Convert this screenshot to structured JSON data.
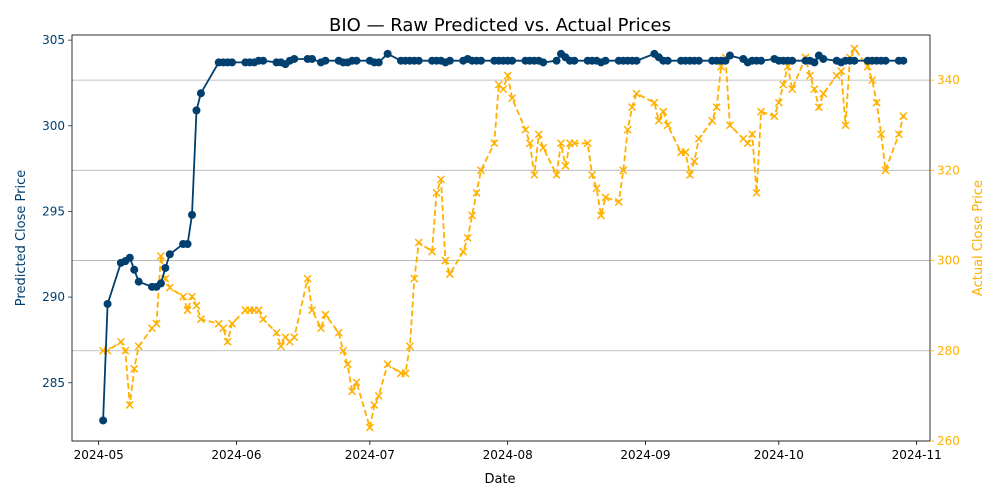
{
  "chart_data": {
    "type": "line",
    "title": "BIO — Raw Predicted vs. Actual Prices",
    "xlabel": "Date",
    "ylabel_left": "Predicted Close Price",
    "ylabel_right": "Actual Close Price",
    "xlim": [
      "2024-04-25",
      "2024-11-04"
    ],
    "ylim_left": [
      281.6,
      305.3
    ],
    "ylim_right": [
      260,
      350
    ],
    "x_ticks": [
      "2024-05",
      "2024-06",
      "2024-07",
      "2024-08",
      "2024-09",
      "2024-10",
      "2024-11"
    ],
    "y_ticks_left": [
      285,
      290,
      295,
      300,
      305
    ],
    "y_ticks_right": [
      260,
      280,
      300,
      320,
      340
    ],
    "grid": "horizontal lines at right-axis ticks",
    "colors": {
      "predicted": "#003f6e",
      "actual": "#ffb000"
    },
    "series": [
      {
        "axis": "left",
        "style": "solid line with circle markers",
        "points": [
          [
            "2024-05-02",
            282.8
          ],
          [
            "2024-05-03",
            289.6
          ],
          [
            "2024-05-06",
            292.0
          ],
          [
            "2024-05-07",
            292.1
          ],
          [
            "2024-05-08",
            292.3
          ],
          [
            "2024-05-09",
            291.6
          ],
          [
            "2024-05-10",
            290.9
          ],
          [
            "2024-05-13",
            290.6
          ],
          [
            "2024-05-14",
            290.6
          ],
          [
            "2024-05-15",
            290.8
          ],
          [
            "2024-05-16",
            291.7
          ],
          [
            "2024-05-17",
            292.5
          ],
          [
            "2024-05-20",
            293.1
          ],
          [
            "2024-05-21",
            293.1
          ],
          [
            "2024-05-22",
            294.8
          ],
          [
            "2024-05-23",
            300.9
          ],
          [
            "2024-05-24",
            301.9
          ],
          [
            "2024-05-28",
            303.7
          ],
          [
            "2024-05-29",
            303.7
          ],
          [
            "2024-05-30",
            303.7
          ],
          [
            "2024-05-31",
            303.7
          ],
          [
            "2024-06-03",
            303.7
          ],
          [
            "2024-06-04",
            303.7
          ],
          [
            "2024-06-05",
            303.7
          ],
          [
            "2024-06-06",
            303.8
          ],
          [
            "2024-06-07",
            303.8
          ],
          [
            "2024-06-10",
            303.7
          ],
          [
            "2024-06-11",
            303.7
          ],
          [
            "2024-06-12",
            303.6
          ],
          [
            "2024-06-13",
            303.8
          ],
          [
            "2024-06-14",
            303.9
          ],
          [
            "2024-06-17",
            303.9
          ],
          [
            "2024-06-18",
            303.9
          ],
          [
            "2024-06-20",
            303.7
          ],
          [
            "2024-06-21",
            303.8
          ],
          [
            "2024-06-24",
            303.8
          ],
          [
            "2024-06-25",
            303.7
          ],
          [
            "2024-06-26",
            303.7
          ],
          [
            "2024-06-27",
            303.8
          ],
          [
            "2024-06-28",
            303.8
          ],
          [
            "2024-07-01",
            303.8
          ],
          [
            "2024-07-02",
            303.7
          ],
          [
            "2024-07-03",
            303.7
          ],
          [
            "2024-07-05",
            304.2
          ],
          [
            "2024-07-08",
            303.8
          ],
          [
            "2024-07-09",
            303.8
          ],
          [
            "2024-07-10",
            303.8
          ],
          [
            "2024-07-11",
            303.8
          ],
          [
            "2024-07-12",
            303.8
          ],
          [
            "2024-07-15",
            303.8
          ],
          [
            "2024-07-16",
            303.8
          ],
          [
            "2024-07-17",
            303.8
          ],
          [
            "2024-07-18",
            303.7
          ],
          [
            "2024-07-19",
            303.8
          ],
          [
            "2024-07-22",
            303.8
          ],
          [
            "2024-07-23",
            303.9
          ],
          [
            "2024-07-24",
            303.8
          ],
          [
            "2024-07-25",
            303.8
          ],
          [
            "2024-07-26",
            303.8
          ],
          [
            "2024-07-29",
            303.8
          ],
          [
            "2024-07-30",
            303.8
          ],
          [
            "2024-07-31",
            303.8
          ],
          [
            "2024-08-01",
            303.8
          ],
          [
            "2024-08-02",
            303.8
          ],
          [
            "2024-08-05",
            303.8
          ],
          [
            "2024-08-06",
            303.8
          ],
          [
            "2024-08-07",
            303.8
          ],
          [
            "2024-08-08",
            303.8
          ],
          [
            "2024-08-09",
            303.7
          ],
          [
            "2024-08-12",
            303.8
          ],
          [
            "2024-08-13",
            304.2
          ],
          [
            "2024-08-14",
            304.0
          ],
          [
            "2024-08-15",
            303.8
          ],
          [
            "2024-08-16",
            303.8
          ],
          [
            "2024-08-19",
            303.8
          ],
          [
            "2024-08-20",
            303.8
          ],
          [
            "2024-08-21",
            303.8
          ],
          [
            "2024-08-22",
            303.7
          ],
          [
            "2024-08-23",
            303.8
          ],
          [
            "2024-08-26",
            303.8
          ],
          [
            "2024-08-27",
            303.8
          ],
          [
            "2024-08-28",
            303.8
          ],
          [
            "2024-08-29",
            303.8
          ],
          [
            "2024-08-30",
            303.8
          ],
          [
            "2024-09-03",
            304.2
          ],
          [
            "2024-09-04",
            304.0
          ],
          [
            "2024-09-05",
            303.8
          ],
          [
            "2024-09-06",
            303.8
          ],
          [
            "2024-09-09",
            303.8
          ],
          [
            "2024-09-10",
            303.8
          ],
          [
            "2024-09-11",
            303.8
          ],
          [
            "2024-09-12",
            303.8
          ],
          [
            "2024-09-13",
            303.8
          ],
          [
            "2024-09-16",
            303.8
          ],
          [
            "2024-09-17",
            303.8
          ],
          [
            "2024-09-18",
            303.8
          ],
          [
            "2024-09-19",
            303.8
          ],
          [
            "2024-09-20",
            304.1
          ],
          [
            "2024-09-23",
            303.9
          ],
          [
            "2024-09-24",
            303.7
          ],
          [
            "2024-09-25",
            303.8
          ],
          [
            "2024-09-26",
            303.8
          ],
          [
            "2024-09-27",
            303.8
          ],
          [
            "2024-09-30",
            303.9
          ],
          [
            "2024-10-01",
            303.8
          ],
          [
            "2024-10-02",
            303.8
          ],
          [
            "2024-10-03",
            303.8
          ],
          [
            "2024-10-04",
            303.8
          ],
          [
            "2024-10-07",
            303.8
          ],
          [
            "2024-10-08",
            303.8
          ],
          [
            "2024-10-09",
            303.7
          ],
          [
            "2024-10-10",
            304.1
          ],
          [
            "2024-10-11",
            303.9
          ],
          [
            "2024-10-14",
            303.8
          ],
          [
            "2024-10-15",
            303.7
          ],
          [
            "2024-10-16",
            303.8
          ],
          [
            "2024-10-17",
            303.8
          ],
          [
            "2024-10-18",
            303.8
          ],
          [
            "2024-10-21",
            303.8
          ],
          [
            "2024-10-22",
            303.8
          ],
          [
            "2024-10-23",
            303.8
          ],
          [
            "2024-10-24",
            303.8
          ],
          [
            "2024-10-25",
            303.8
          ],
          [
            "2024-10-28",
            303.8
          ],
          [
            "2024-10-29",
            303.8
          ]
        ]
      },
      {
        "axis": "right",
        "style": "dashed line with x markers",
        "points": [
          [
            "2024-05-02",
            280.0
          ],
          [
            "2024-05-03",
            280.0
          ],
          [
            "2024-05-06",
            282.0
          ],
          [
            "2024-05-07",
            280.0
          ],
          [
            "2024-05-08",
            268.0
          ],
          [
            "2024-05-09",
            276.0
          ],
          [
            "2024-05-10",
            281.0
          ],
          [
            "2024-05-13",
            285.0
          ],
          [
            "2024-05-14",
            286.0
          ],
          [
            "2024-05-15",
            301.0
          ],
          [
            "2024-05-16",
            296.0
          ],
          [
            "2024-05-17",
            294.0
          ],
          [
            "2024-05-20",
            292.0
          ],
          [
            "2024-05-21",
            289.0
          ],
          [
            "2024-05-22",
            292.0
          ],
          [
            "2024-05-23",
            290.0
          ],
          [
            "2024-05-24",
            287.0
          ],
          [
            "2024-05-28",
            286.0
          ],
          [
            "2024-05-29",
            285.0
          ],
          [
            "2024-05-30",
            282.0
          ],
          [
            "2024-05-31",
            286.0
          ],
          [
            "2024-06-03",
            289.0
          ],
          [
            "2024-06-04",
            289.0
          ],
          [
            "2024-06-05",
            289.0
          ],
          [
            "2024-06-06",
            289.0
          ],
          [
            "2024-06-07",
            287.0
          ],
          [
            "2024-06-10",
            284.0
          ],
          [
            "2024-06-11",
            281.0
          ],
          [
            "2024-06-12",
            283.0
          ],
          [
            "2024-06-13",
            282.0
          ],
          [
            "2024-06-14",
            283.0
          ],
          [
            "2024-06-17",
            296.0
          ],
          [
            "2024-06-18",
            289.0
          ],
          [
            "2024-06-20",
            285.0
          ],
          [
            "2024-06-21",
            288.0
          ],
          [
            "2024-06-24",
            284.0
          ],
          [
            "2024-06-25",
            280.0
          ],
          [
            "2024-06-26",
            277.0
          ],
          [
            "2024-06-27",
            271.0
          ],
          [
            "2024-06-28",
            273.0
          ],
          [
            "2024-07-01",
            263.0
          ],
          [
            "2024-07-02",
            268.0
          ],
          [
            "2024-07-03",
            270.0
          ],
          [
            "2024-07-05",
            277.0
          ],
          [
            "2024-07-08",
            275.0
          ],
          [
            "2024-07-09",
            275.0
          ],
          [
            "2024-07-10",
            281.0
          ],
          [
            "2024-07-11",
            296.0
          ],
          [
            "2024-07-12",
            304.0
          ],
          [
            "2024-07-15",
            302.0
          ],
          [
            "2024-07-16",
            315.0
          ],
          [
            "2024-07-17",
            318.0
          ],
          [
            "2024-07-18",
            300.0
          ],
          [
            "2024-07-19",
            297.0
          ],
          [
            "2024-07-22",
            302.0
          ],
          [
            "2024-07-23",
            305.0
          ],
          [
            "2024-07-24",
            310.0
          ],
          [
            "2024-07-25",
            315.0
          ],
          [
            "2024-07-26",
            320.0
          ],
          [
            "2024-07-29",
            326.0
          ],
          [
            "2024-07-30",
            339.0
          ],
          [
            "2024-07-31",
            338.0
          ],
          [
            "2024-08-01",
            341.0
          ],
          [
            "2024-08-02",
            336.0
          ],
          [
            "2024-08-05",
            329.0
          ],
          [
            "2024-08-06",
            326.0
          ],
          [
            "2024-08-07",
            319.0
          ],
          [
            "2024-08-08",
            328.0
          ],
          [
            "2024-08-09",
            325.0
          ],
          [
            "2024-08-12",
            319.0
          ],
          [
            "2024-08-13",
            326.0
          ],
          [
            "2024-08-14",
            321.0
          ],
          [
            "2024-08-15",
            326.0
          ],
          [
            "2024-08-16",
            326.0
          ],
          [
            "2024-08-19",
            326.0
          ],
          [
            "2024-08-20",
            319.0
          ],
          [
            "2024-08-21",
            316.0
          ],
          [
            "2024-08-22",
            310.0
          ],
          [
            "2024-08-23",
            314.0
          ],
          [
            "2024-08-26",
            313.0
          ],
          [
            "2024-08-27",
            320.0
          ],
          [
            "2024-08-28",
            329.0
          ],
          [
            "2024-08-29",
            334.0
          ],
          [
            "2024-08-30",
            337.0
          ],
          [
            "2024-09-03",
            335.0
          ],
          [
            "2024-09-04",
            331.0
          ],
          [
            "2024-09-05",
            333.0
          ],
          [
            "2024-09-06",
            330.0
          ],
          [
            "2024-09-09",
            324.0
          ],
          [
            "2024-09-10",
            324.0
          ],
          [
            "2024-09-11",
            319.0
          ],
          [
            "2024-09-12",
            322.0
          ],
          [
            "2024-09-13",
            327.0
          ],
          [
            "2024-09-16",
            331.0
          ],
          [
            "2024-09-17",
            334.0
          ],
          [
            "2024-09-18",
            343.0
          ],
          [
            "2024-09-19",
            345.0
          ],
          [
            "2024-09-20",
            330.0
          ],
          [
            "2024-09-23",
            327.0
          ],
          [
            "2024-09-24",
            326.0
          ],
          [
            "2024-09-25",
            328.0
          ],
          [
            "2024-09-26",
            315.0
          ],
          [
            "2024-09-27",
            333.0
          ],
          [
            "2024-09-30",
            332.0
          ],
          [
            "2024-10-01",
            335.0
          ],
          [
            "2024-10-02",
            339.0
          ],
          [
            "2024-10-03",
            343.0
          ],
          [
            "2024-10-04",
            338.0
          ],
          [
            "2024-10-07",
            345.0
          ],
          [
            "2024-10-08",
            341.0
          ],
          [
            "2024-10-09",
            338.0
          ],
          [
            "2024-10-10",
            334.0
          ],
          [
            "2024-10-11",
            337.0
          ],
          [
            "2024-10-14",
            341.0
          ],
          [
            "2024-10-15",
            342.0
          ],
          [
            "2024-10-16",
            330.0
          ],
          [
            "2024-10-17",
            345.0
          ],
          [
            "2024-10-18",
            347.0
          ],
          [
            "2024-10-21",
            343.0
          ],
          [
            "2024-10-22",
            340.0
          ],
          [
            "2024-10-23",
            335.0
          ],
          [
            "2024-10-24",
            328.0
          ],
          [
            "2024-10-25",
            320.0
          ],
          [
            "2024-10-28",
            328.0
          ],
          [
            "2024-10-29",
            332.0
          ]
        ]
      }
    ]
  }
}
